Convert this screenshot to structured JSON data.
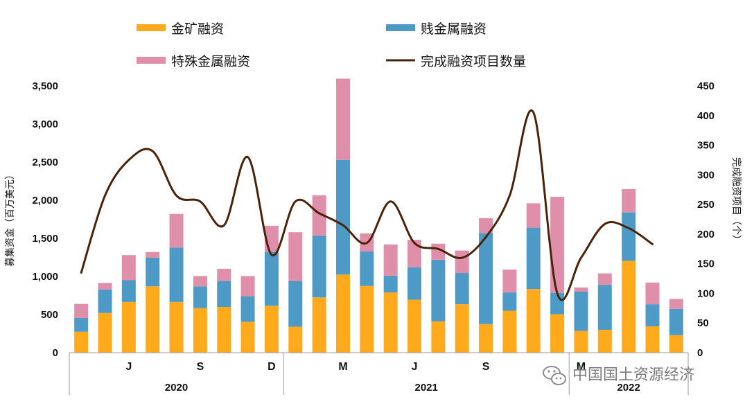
{
  "chart_data": {
    "type": "bar",
    "stacked": true,
    "ylabel": "募集资金（百万美元）",
    "y2label": "完成融资项目（个）",
    "ylim": [
      0,
      3500
    ],
    "y2lim": [
      0,
      450
    ],
    "yticks": [
      "0",
      "500",
      "1,000",
      "1,500",
      "2,000",
      "2,500",
      "3,000",
      "3,500"
    ],
    "y2ticks": [
      "0",
      "50",
      "100",
      "150",
      "200",
      "250",
      "300",
      "350",
      "400",
      "450"
    ],
    "month_labels": [
      {
        "index": 2,
        "label": "J"
      },
      {
        "index": 5,
        "label": "S"
      },
      {
        "index": 8,
        "label": "D"
      },
      {
        "index": 11,
        "label": "M"
      },
      {
        "index": 14,
        "label": "J"
      },
      {
        "index": 17,
        "label": "S"
      },
      {
        "index": 21,
        "label": "M"
      }
    ],
    "years": [
      {
        "label": "2020",
        "start": 0,
        "end": 8
      },
      {
        "label": "2021",
        "start": 9,
        "end": 20
      },
      {
        "label": "2022",
        "start": 21,
        "end": 25
      }
    ],
    "legend_position": "top",
    "series": [
      {
        "name": "金矿融资",
        "color": "#FFAA1C",
        "values": [
          275,
          520,
          665,
          870,
          665,
          585,
          600,
          405,
          615,
          340,
          725,
          1025,
          875,
          790,
          695,
          410,
          635,
          375,
          550,
          835,
          505,
          285,
          300,
          1205,
          345,
          230
        ]
      },
      {
        "name": "贱金属融资",
        "color": "#4E9AC6",
        "values": [
          180,
          310,
          285,
          375,
          715,
          285,
          340,
          335,
          710,
          600,
          810,
          1505,
          455,
          220,
          425,
          810,
          410,
          1195,
          240,
          805,
          280,
          515,
          590,
          635,
          290,
          345
        ]
      },
      {
        "name": "特殊金属融资",
        "color": "#E08FAA",
        "values": [
          185,
          85,
          330,
          75,
          440,
          135,
          160,
          265,
          340,
          640,
          530,
          1065,
          235,
          410,
          360,
          210,
          295,
          195,
          300,
          320,
          1260,
          55,
          150,
          305,
          285,
          130
        ]
      }
    ],
    "line": {
      "name": "完成融资项目数量",
      "color": "#4A2208",
      "values": [
        135,
        265,
        325,
        340,
        265,
        255,
        215,
        330,
        165,
        255,
        235,
        215,
        185,
        255,
        185,
        175,
        160,
        195,
        265,
        405,
        100,
        160,
        217,
        210,
        183
      ]
    }
  },
  "watermark": {
    "text": "中国国土资源经济"
  }
}
